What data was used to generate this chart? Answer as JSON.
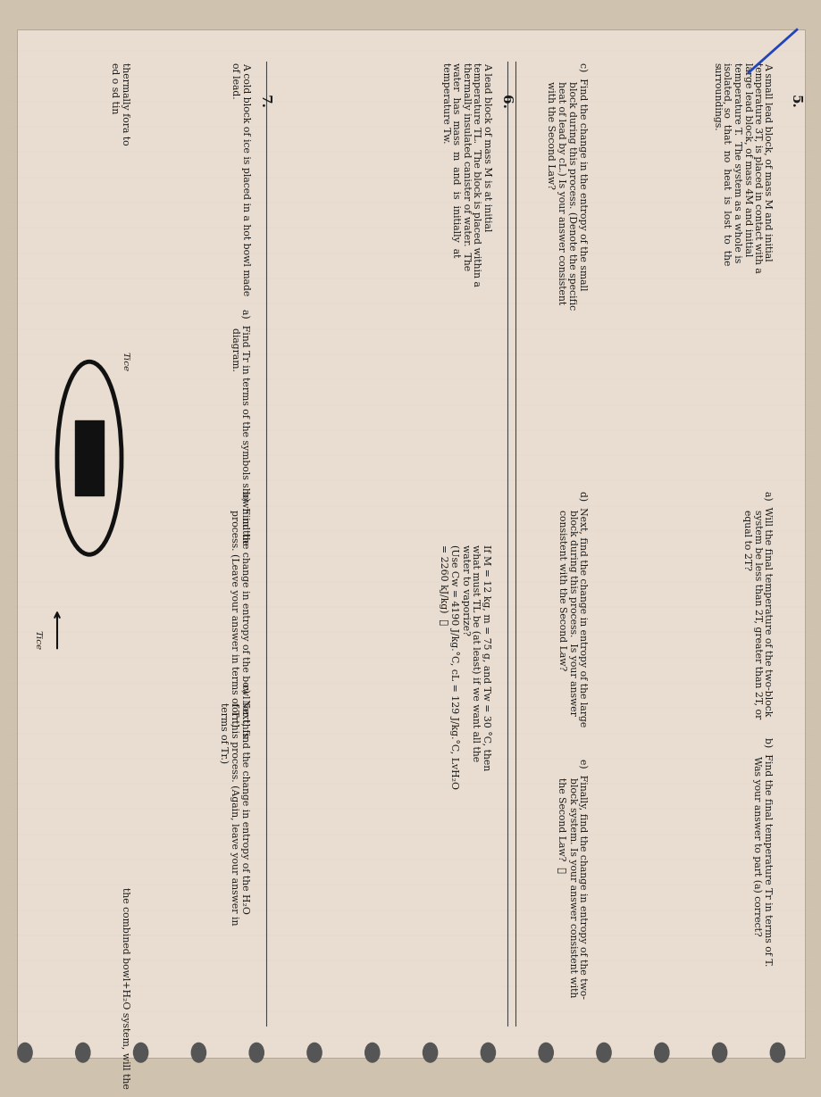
{
  "bg_color": "#cfc3b0",
  "page_color": "#e8ddd0",
  "text_color": "#1a1a1a",
  "figsize": [
    9.0,
    12.0
  ],
  "dpi": 100,
  "page_rotation_deg": 90,
  "problems": {
    "p5": {
      "number": "5.",
      "intro": "A small lead block, of mass M and initial\ntemperature 3T, is placed in contact with a\nlarge lead block, of mass 4M and initial\ntemperature T.  The system as a whole is\nisolated, so that no heat is lost to the\nsurroundings.",
      "a": "a)  Will the final temperature of the two-block\n     system be less than 2T, greater than 2T, or\n     equal to 2T?",
      "b": "b)  Find the final temperature Tr in terms of T.\n     Was your answer to part (a) correct?",
      "c": "c)  Find the change in the entropy of the small\n     block during this process. (Denote the specific\n     heat of lead by cL.) Is your answer consistent\n     with the Second Law?",
      "d": "d)  Next, find the change in entropy of the large\n     block during this process.  Is your answer\n     consistent with the Second Law?",
      "e": "e)  Finally, find the change in entropy of the two-\n     block system. Is your answer consistent with\n     the Second Law?  ❖"
    },
    "p6": {
      "number": "6.",
      "intro": "A lead block of mass M is at initial\ntemperature TL.  The block is placed within a\nthermally insulated canister of water.  The\nwater has mass m and is initially at\ntemperature Tw.",
      "numerical": "If M = 12 kg, m = 75 g, and Tw = 30 °C, then\nwhat must TL be (at least) if we want all the\nwater to vaporize?\n(Use Cw = 4190 J/kg.°C, cL = 129 J/kg.°C, LvH₂O\n= 2260 kJ/kg)  ❖"
    },
    "p7": {
      "number": "7.",
      "intro": "A cold block of ice is placed in a hot bowl made\nof lead.",
      "a": "a)  Find Tr in terms of the symbols shown in the\n     diagram.",
      "b": "b)  Find the change in entropy of the bowl for this\n     process. (Leave your answer in terms of Tr.)",
      "c": "c)  Next, find the change in entropy of the H₂O\n     for this process. (Again, leave your answer in\n     terms of Tr.)",
      "right_text": "thermally fora to\ned o sd tin\n\n\nTice",
      "bottom_text": "the combined bowl+H₂O system, will the"
    }
  },
  "line_color": "#444444",
  "dot_color": "#555555",
  "blue_pen_color": "#2244bb"
}
